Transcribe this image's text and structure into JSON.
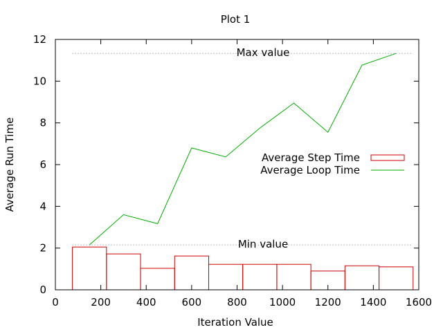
{
  "chart_data": {
    "type": "bar",
    "title": "Plot 1",
    "xlabel": "Iteration Value",
    "ylabel": "Average Run Time",
    "xlim": [
      0,
      1600
    ],
    "ylim": [
      0,
      12
    ],
    "xticks": [
      0,
      200,
      400,
      600,
      800,
      1000,
      1200,
      1400,
      1600
    ],
    "yticks": [
      0,
      2,
      4,
      6,
      8,
      10,
      12
    ],
    "grid": false,
    "legend_position": "center-right",
    "series": [
      {
        "name": "Average Step Time",
        "kind": "boxes",
        "color": "#cc0000",
        "x": [
          150,
          300,
          450,
          600,
          750,
          900,
          1050,
          1200,
          1350,
          1500
        ],
        "values": [
          2.05,
          1.72,
          1.03,
          1.62,
          1.22,
          1.22,
          1.22,
          0.9,
          1.15,
          1.1
        ]
      },
      {
        "name": "Average Loop Time",
        "kind": "line",
        "color": "#00aa00",
        "x": [
          150,
          300,
          450,
          600,
          750,
          900,
          1050,
          1200,
          1350,
          1500
        ],
        "values": [
          2.15,
          3.6,
          3.17,
          6.8,
          6.37,
          7.75,
          8.95,
          7.55,
          10.77,
          11.33
        ]
      }
    ],
    "reference_lines": [
      {
        "label": "Max value",
        "value": 11.33,
        "x_range": [
          75,
          1575
        ]
      },
      {
        "label": "Min value",
        "value": 2.15,
        "x_range": [
          75,
          1575
        ]
      }
    ],
    "box_width": 150
  }
}
